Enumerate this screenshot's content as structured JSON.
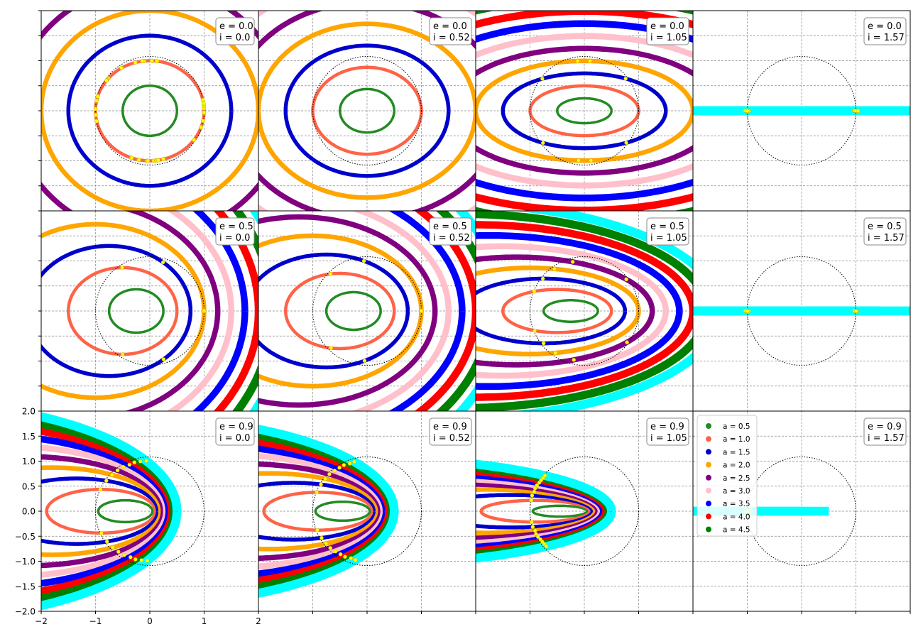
{
  "figure": {
    "grid_rows": [
      "0.0",
      "0.5",
      "0.9"
    ],
    "grid_cols": [
      "0.0",
      "0.52",
      "1.05",
      "1.57"
    ]
  },
  "palette": {
    "0.5": "#228b22",
    "1.0": "#ff6347",
    "1.5": "#0000cd",
    "2.0": "#ffa500",
    "2.5": "#800080",
    "3.0": "#ffc0cb",
    "3.5": "#0000ff",
    "4.0": "#ff0000",
    "4.5": "#008000",
    "5.0": "#00ffff",
    "marker": "#ffff00",
    "reference_circle": "#000000"
  },
  "chart_data": {
    "type": "scatter",
    "description_of_series": "Projected elliptical orbits of semi-major axis a, drawn for eccentricity e (rows) and inclination i (columns); yellow markers lie where each orbit crosses the dotted unit circle.",
    "xlim": [
      -2,
      2
    ],
    "ylim": [
      -2,
      2
    ],
    "xticks": [
      "−2",
      "−1",
      "0",
      "1",
      "2"
    ],
    "yticks": [
      "2.0",
      "1.5",
      "1.0",
      "0.5",
      "0.0",
      "−0.5",
      "−1.0",
      "−1.5",
      "−2.0"
    ],
    "grid": true,
    "legend_position": "top-left",
    "legend_panel": "e = 0.9, i = 1.57",
    "series": [
      {
        "name": "a = 0.5",
        "a": 0.5,
        "color": "#228b22"
      },
      {
        "name": "a = 1.0",
        "a": 1.0,
        "color": "#ff6347"
      },
      {
        "name": "a = 1.5",
        "a": 1.5,
        "color": "#0000cd"
      },
      {
        "name": "a = 2.0",
        "a": 2.0,
        "color": "#ffa500"
      },
      {
        "name": "a = 2.5",
        "a": 2.5,
        "color": "#800080"
      },
      {
        "name": "a = 3.0",
        "a": 3.0,
        "color": "#ffc0cb"
      },
      {
        "name": "a = 3.5",
        "a": 3.5,
        "color": "#0000ff"
      },
      {
        "name": "a = 4.0",
        "a": 4.0,
        "color": "#ff0000"
      },
      {
        "name": "a = 4.5",
        "a": 4.5,
        "color": "#008000"
      }
    ],
    "extra_orbits_not_in_legend": [
      5.0
    ],
    "reference_circle_radius": 1.0,
    "panels": [
      {
        "row": 0,
        "col": 0,
        "e": 0.0,
        "i": 0.0,
        "label_e": "e = 0.0",
        "label_i": "i = 0.0"
      },
      {
        "row": 0,
        "col": 1,
        "e": 0.0,
        "i": 0.52,
        "label_e": "e = 0.0",
        "label_i": "i = 0.52"
      },
      {
        "row": 0,
        "col": 2,
        "e": 0.0,
        "i": 1.05,
        "label_e": "e = 0.0",
        "label_i": "i = 1.05"
      },
      {
        "row": 0,
        "col": 3,
        "e": 0.0,
        "i": 1.57,
        "label_e": "e = 0.0",
        "label_i": "i = 1.57"
      },
      {
        "row": 1,
        "col": 0,
        "e": 0.5,
        "i": 0.0,
        "label_e": "e = 0.5",
        "label_i": "i = 0.0"
      },
      {
        "row": 1,
        "col": 1,
        "e": 0.5,
        "i": 0.52,
        "label_e": "e = 0.5",
        "label_i": "i = 0.52"
      },
      {
        "row": 1,
        "col": 2,
        "e": 0.5,
        "i": 1.05,
        "label_e": "e = 0.5",
        "label_i": "i = 1.05"
      },
      {
        "row": 1,
        "col": 3,
        "e": 0.5,
        "i": 1.57,
        "label_e": "e = 0.5",
        "label_i": "i = 1.57"
      },
      {
        "row": 2,
        "col": 0,
        "e": 0.9,
        "i": 0.0,
        "label_e": "e = 0.9",
        "label_i": "i = 0.0"
      },
      {
        "row": 2,
        "col": 1,
        "e": 0.9,
        "i": 0.52,
        "label_e": "e = 0.9",
        "label_i": "i = 0.52"
      },
      {
        "row": 2,
        "col": 2,
        "e": 0.9,
        "i": 1.05,
        "label_e": "e = 0.9",
        "label_i": "i = 1.05"
      },
      {
        "row": 2,
        "col": 3,
        "e": 0.9,
        "i": 1.57,
        "label_e": "e = 0.9",
        "label_i": "i = 1.57"
      }
    ]
  }
}
